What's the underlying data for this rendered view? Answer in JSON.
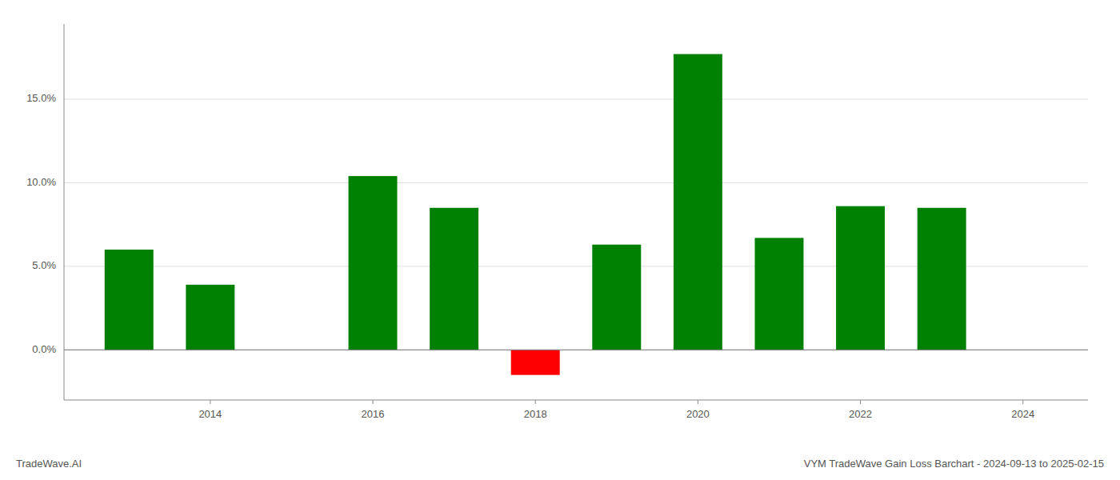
{
  "chart_data": {
    "type": "bar",
    "title": "VYM TradeWave Gain Loss Barchart - 2024-09-13 to 2025-02-15",
    "annotations": [
      "TradeWave.AI"
    ],
    "x": [
      2013,
      2014,
      2016,
      2017,
      2018,
      2019,
      2020,
      2021,
      2022,
      2023
    ],
    "values": [
      0.06,
      0.039,
      0.104,
      0.085,
      -0.015,
      0.063,
      0.177,
      0.067,
      0.086,
      0.085
    ],
    "colors": [
      "#008000",
      "#008000",
      "#008000",
      "#008000",
      "#ff0000",
      "#008000",
      "#008000",
      "#008000",
      "#008000",
      "#008000"
    ],
    "xlim": [
      2012.2,
      2024.8
    ],
    "xticks": [
      2014,
      2016,
      2018,
      2020,
      2022,
      2024
    ],
    "ylim": [
      -0.03,
      0.195
    ],
    "yticks": [
      {
        "value": 0.0,
        "label": "0.0%"
      },
      {
        "value": 0.05,
        "label": "5.0%"
      },
      {
        "value": 0.1,
        "label": "10.0%"
      },
      {
        "value": 0.15,
        "label": "15.0%"
      }
    ],
    "grid": true
  }
}
